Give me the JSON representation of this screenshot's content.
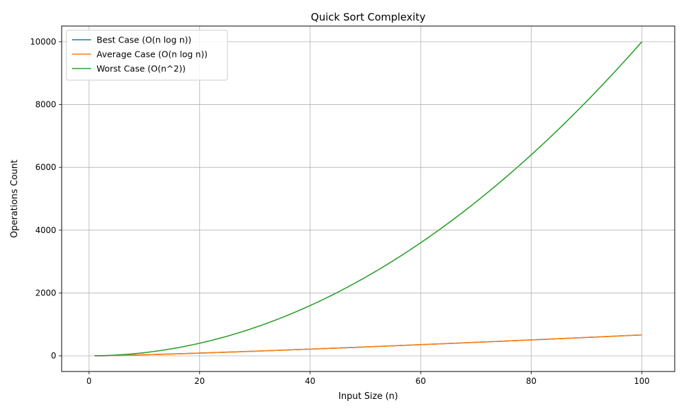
{
  "chart_data": {
    "type": "line",
    "title": "Quick Sort Complexity",
    "xlabel": "Input Size (n)",
    "ylabel": "Operations Count",
    "xlim": [
      -4.95,
      105.95
    ],
    "ylim": [
      -500,
      10500
    ],
    "xticks": [
      0,
      20,
      40,
      60,
      80,
      100
    ],
    "yticks": [
      0,
      2000,
      4000,
      6000,
      8000,
      10000
    ],
    "grid": true,
    "legend_position": "top-left",
    "x_range": [
      1,
      100
    ],
    "series": [
      {
        "name": "Best Case (O(n log n))",
        "color": "#1f77b4",
        "formula": "n*log2(n)"
      },
      {
        "name": "Average Case (O(n log n))",
        "color": "#ff7f0e",
        "formula": "n*log2(n)"
      },
      {
        "name": "Worst Case (O(n^2))",
        "color": "#2ca02c",
        "formula": "n^2"
      }
    ]
  }
}
